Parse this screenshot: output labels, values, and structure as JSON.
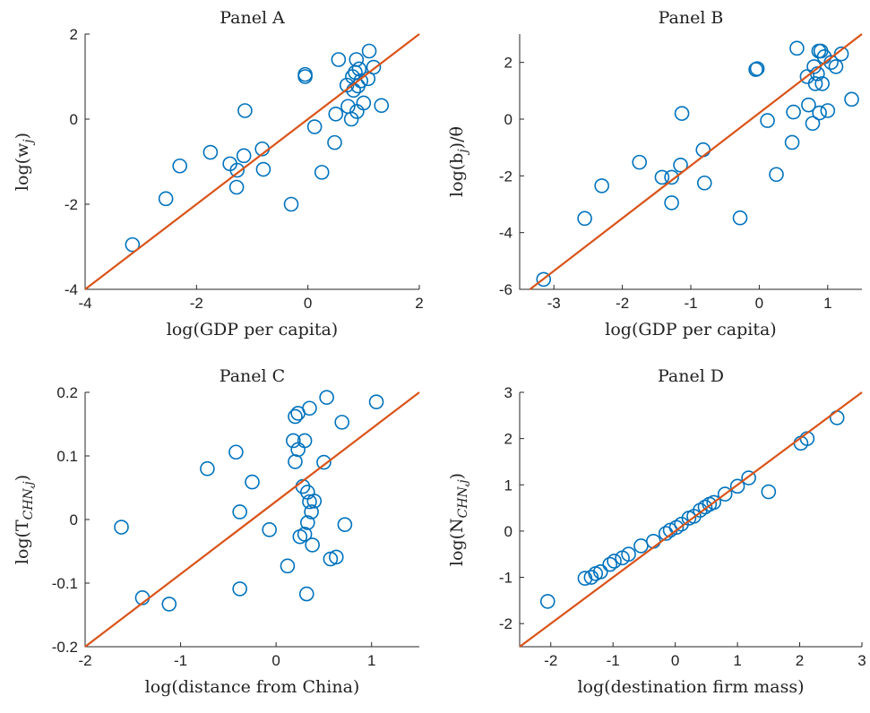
{
  "colors": {
    "marker": "#0072BD",
    "line": "#D95319",
    "axis": "#262626"
  },
  "chart_data": [
    {
      "type": "scatter",
      "title": "Panel A",
      "xlabel": "log(GDP per capita)",
      "ylabel_main": "log(w",
      "ylabel_sub": "j",
      "ylabel_tail": ")",
      "xlim": [
        -4,
        2
      ],
      "ylim": [
        -4,
        2
      ],
      "xticks": [
        -4,
        -2,
        0,
        2
      ],
      "yticks": [
        -4,
        -2,
        0,
        2
      ],
      "xtick_labels": [
        "-4",
        "-2",
        "0",
        "2"
      ],
      "ytick_labels": [
        "-4",
        "-2",
        "0",
        "2"
      ],
      "fit_line": [
        [
          -4,
          -4
        ],
        [
          2,
          2
        ]
      ],
      "points": [
        [
          -3.15,
          -2.95
        ],
        [
          -2.55,
          -1.87
        ],
        [
          -2.3,
          -1.1
        ],
        [
          -1.75,
          -0.78
        ],
        [
          -1.4,
          -1.05
        ],
        [
          -1.28,
          -1.6
        ],
        [
          -1.27,
          -1.2
        ],
        [
          -1.15,
          -0.86
        ],
        [
          -1.13,
          0.2
        ],
        [
          -0.82,
          -0.7
        ],
        [
          -0.8,
          -1.18
        ],
        [
          -0.3,
          -2.0
        ],
        [
          -0.05,
          1.0
        ],
        [
          -0.05,
          1.05
        ],
        [
          0.12,
          -0.18
        ],
        [
          0.25,
          -1.25
        ],
        [
          0.48,
          -0.55
        ],
        [
          0.5,
          0.12
        ],
        [
          0.55,
          1.4
        ],
        [
          0.7,
          0.8
        ],
        [
          0.72,
          0.3
        ],
        [
          0.78,
          0.0
        ],
        [
          0.8,
          1.0
        ],
        [
          0.82,
          0.68
        ],
        [
          0.85,
          1.1
        ],
        [
          0.87,
          1.4
        ],
        [
          0.88,
          0.18
        ],
        [
          0.9,
          0.78
        ],
        [
          0.92,
          1.18
        ],
        [
          0.95,
          0.9
        ],
        [
          1.0,
          0.38
        ],
        [
          1.08,
          0.95
        ],
        [
          1.1,
          1.6
        ],
        [
          1.18,
          1.22
        ],
        [
          1.32,
          0.32
        ]
      ]
    },
    {
      "type": "scatter",
      "title": "Panel B",
      "xlabel": "log(GDP per capita)",
      "ylabel_main": "log(b",
      "ylabel_sub": "j",
      "ylabel_tail": ")/θ",
      "xlim": [
        -3.5,
        1.5
      ],
      "ylim": [
        -6,
        3
      ],
      "xticks": [
        -3,
        -2,
        -1,
        0,
        1
      ],
      "yticks": [
        -6,
        -4,
        -2,
        0,
        2
      ],
      "xtick_labels": [
        "-3",
        "-2",
        "-1",
        "0",
        "1"
      ],
      "ytick_labels": [
        "-6",
        "-4",
        "-2",
        "0",
        "2"
      ],
      "fit_line": [
        [
          -3.35,
          -6
        ],
        [
          1.5,
          3
        ]
      ],
      "points": [
        [
          -3.15,
          -5.65
        ],
        [
          -2.55,
          -3.5
        ],
        [
          -2.3,
          -2.35
        ],
        [
          -1.75,
          -1.52
        ],
        [
          -1.42,
          -2.05
        ],
        [
          -1.28,
          -2.05
        ],
        [
          -1.28,
          -2.95
        ],
        [
          -1.15,
          -1.62
        ],
        [
          -1.13,
          0.2
        ],
        [
          -0.82,
          -1.08
        ],
        [
          -0.8,
          -2.25
        ],
        [
          -0.28,
          -3.48
        ],
        [
          -0.05,
          1.75
        ],
        [
          -0.03,
          1.78
        ],
        [
          0.12,
          -0.05
        ],
        [
          0.25,
          -1.95
        ],
        [
          0.48,
          -0.82
        ],
        [
          0.5,
          0.25
        ],
        [
          0.55,
          2.5
        ],
        [
          0.7,
          1.5
        ],
        [
          0.72,
          0.5
        ],
        [
          0.78,
          -0.15
        ],
        [
          0.8,
          1.85
        ],
        [
          0.82,
          1.25
        ],
        [
          0.85,
          1.6
        ],
        [
          0.87,
          2.4
        ],
        [
          0.88,
          0.22
        ],
        [
          0.9,
          2.4
        ],
        [
          0.92,
          1.25
        ],
        [
          0.95,
          2.2
        ],
        [
          1.0,
          0.3
        ],
        [
          1.05,
          2.0
        ],
        [
          1.12,
          1.85
        ],
        [
          1.2,
          2.3
        ],
        [
          1.35,
          0.7
        ]
      ]
    },
    {
      "type": "scatter",
      "title": "Panel C",
      "xlabel": "log(distance from China)",
      "ylabel_main": "log(T",
      "ylabel_sub": "CHN,j",
      "ylabel_tail": ")",
      "xlim": [
        -2,
        1.5
      ],
      "ylim": [
        -0.2,
        0.2
      ],
      "xticks": [
        -2,
        -1,
        0,
        1
      ],
      "yticks": [
        -0.2,
        -0.1,
        0,
        0.1,
        0.2
      ],
      "xtick_labels": [
        "-2",
        "-1",
        "0",
        "1"
      ],
      "ytick_labels": [
        "-0.2",
        "-0.1",
        "0",
        "0.1",
        "0.2"
      ],
      "fit_line": [
        [
          -2,
          -0.2
        ],
        [
          1.5,
          0.2
        ]
      ],
      "points": [
        [
          -1.62,
          -0.012
        ],
        [
          -1.4,
          -0.123
        ],
        [
          -1.12,
          -0.133
        ],
        [
          -0.72,
          0.08
        ],
        [
          -0.42,
          0.106
        ],
        [
          -0.38,
          0.012
        ],
        [
          -0.38,
          -0.109
        ],
        [
          -0.25,
          0.059
        ],
        [
          -0.07,
          -0.016
        ],
        [
          0.12,
          -0.073
        ],
        [
          0.18,
          0.124
        ],
        [
          0.2,
          0.091
        ],
        [
          0.2,
          0.162
        ],
        [
          0.23,
          0.11
        ],
        [
          0.23,
          0.167
        ],
        [
          0.25,
          -0.027
        ],
        [
          0.28,
          0.052
        ],
        [
          0.3,
          0.124
        ],
        [
          0.3,
          -0.023
        ],
        [
          0.32,
          -0.117
        ],
        [
          0.33,
          -0.005
        ],
        [
          0.33,
          0.043
        ],
        [
          0.35,
          0.175
        ],
        [
          0.35,
          0.028
        ],
        [
          0.37,
          0.012
        ],
        [
          0.38,
          -0.04
        ],
        [
          0.4,
          0.029
        ],
        [
          0.5,
          0.09
        ],
        [
          0.53,
          0.192
        ],
        [
          0.57,
          -0.062
        ],
        [
          0.63,
          -0.059
        ],
        [
          0.69,
          0.153
        ],
        [
          0.72,
          -0.008
        ],
        [
          1.05,
          0.185
        ]
      ]
    },
    {
      "type": "scatter",
      "title": "Panel D",
      "xlabel": "log(destination firm mass)",
      "ylabel_main": "log(N",
      "ylabel_sub": "CHN,j",
      "ylabel_tail": ")",
      "xlim": [
        -2.5,
        3
      ],
      "ylim": [
        -2.5,
        3
      ],
      "xticks": [
        -2,
        -1,
        0,
        1,
        2,
        3
      ],
      "yticks": [
        -2,
        -1,
        0,
        1,
        2,
        3
      ],
      "xtick_labels": [
        "-2",
        "-1",
        "0",
        "1",
        "2",
        "3"
      ],
      "ytick_labels": [
        "-2",
        "-1",
        "0",
        "1",
        "2",
        "3"
      ],
      "fit_line": [
        [
          -2.5,
          -2.5
        ],
        [
          3,
          3
        ]
      ],
      "points": [
        [
          -2.05,
          -1.52
        ],
        [
          -1.45,
          -1.02
        ],
        [
          -1.35,
          -1.0
        ],
        [
          -1.28,
          -0.92
        ],
        [
          -1.2,
          -0.88
        ],
        [
          -1.05,
          -0.72
        ],
        [
          -0.98,
          -0.65
        ],
        [
          -0.85,
          -0.58
        ],
        [
          -0.75,
          -0.5
        ],
        [
          -0.55,
          -0.32
        ],
        [
          -0.35,
          -0.22
        ],
        [
          -0.15,
          -0.05
        ],
        [
          -0.08,
          0.02
        ],
        [
          0.02,
          0.08
        ],
        [
          0.1,
          0.15
        ],
        [
          0.22,
          0.28
        ],
        [
          0.3,
          0.32
        ],
        [
          0.4,
          0.45
        ],
        [
          0.48,
          0.52
        ],
        [
          0.55,
          0.58
        ],
        [
          0.62,
          0.62
        ],
        [
          0.8,
          0.8
        ],
        [
          1.0,
          0.97
        ],
        [
          1.18,
          1.15
        ],
        [
          1.5,
          0.85
        ],
        [
          2.02,
          1.9
        ],
        [
          2.12,
          2.0
        ],
        [
          2.6,
          2.45
        ]
      ]
    }
  ]
}
